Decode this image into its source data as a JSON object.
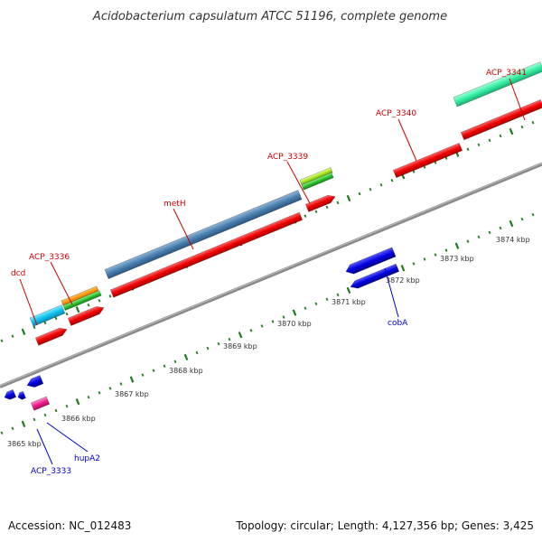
{
  "title": "Acidobacterium capsulatum ATCC 51196, complete genome",
  "footer": {
    "accession": "Accession: NC_012483",
    "summary": "Topology: circular; Length: 4,127,356 bp; Genes: 3,425"
  },
  "colors": {
    "forward_gene_label": "#cc0000",
    "reverse_gene_label": "#0000cc",
    "cds_red": "#ff0000",
    "cds_blue": "#0000ee",
    "backbone": "#888888",
    "tick_green": "#1e7a1e"
  },
  "scale_labels": [
    "3865 kbp",
    "3866 kbp",
    "3867 kbp",
    "3868 kbp",
    "3869 kbp",
    "3870 kbp",
    "3871 kbp",
    "3872 kbp",
    "3873 kbp",
    "3874 kbp"
  ],
  "forward_labels": [
    "dcd",
    "ACP_3336",
    "metH",
    "ACP_3339",
    "ACP_3340",
    "ACP_3341"
  ],
  "reverse_labels": [
    "hupA2",
    "ACP_3333",
    "cobA"
  ]
}
